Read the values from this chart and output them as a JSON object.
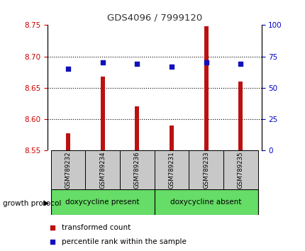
{
  "title": "GDS4096 / 7999120",
  "samples": [
    "GSM789232",
    "GSM789234",
    "GSM789236",
    "GSM789231",
    "GSM789233",
    "GSM789235"
  ],
  "transformed_count": [
    8.578,
    8.668,
    8.62,
    8.59,
    8.748,
    8.66
  ],
  "percentile_rank": [
    65,
    70,
    69,
    67,
    70,
    69
  ],
  "ylim_left": [
    8.55,
    8.75
  ],
  "ylim_right": [
    0,
    100
  ],
  "yticks_left": [
    8.55,
    8.6,
    8.65,
    8.7,
    8.75
  ],
  "yticks_right": [
    0,
    25,
    50,
    75,
    100
  ],
  "bar_color": "#bb1111",
  "dot_color": "#1111bb",
  "bar_bottom": 8.55,
  "grid_lines": [
    8.6,
    8.65,
    8.7
  ],
  "group1_label": "doxycycline present",
  "group2_label": "doxycycline absent",
  "protocol_label": "growth protocol",
  "legend_bar": "transformed count",
  "legend_dot": "percentile rank within the sample",
  "group_bg_color": "#66dd66",
  "tick_label_color_left": "#cc0000",
  "tick_label_color_right": "#0000cc",
  "title_color": "#333333",
  "bar_width": 0.12,
  "dot_size": 18
}
